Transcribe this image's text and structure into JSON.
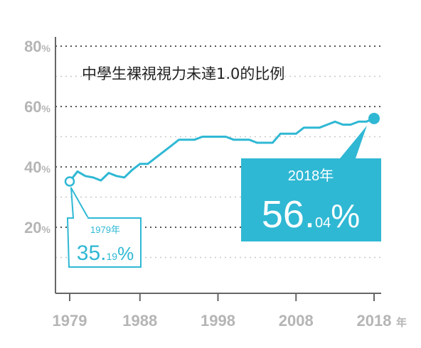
{
  "chart_data": {
    "type": "line",
    "title": "中學生裸視視力未達1.0的比例",
    "xlabel": "",
    "ylabel": "",
    "x_ticks": [
      "1979",
      "1988",
      "1998",
      "2008",
      "2018"
    ],
    "x_unit": "年",
    "y_ticks": [
      {
        "value": 20,
        "label": "20",
        "unit": "%"
      },
      {
        "value": 40,
        "label": "40",
        "unit": "%"
      },
      {
        "value": 60,
        "label": "60",
        "unit": "%"
      },
      {
        "value": 80,
        "label": "80",
        "unit": "%"
      }
    ],
    "xlim": [
      1979,
      2018
    ],
    "ylim": [
      0,
      80
    ],
    "grid": true,
    "colors": {
      "line": "#2fb8d4",
      "axis": "#666666",
      "grid": "#555555",
      "tick": "#b5b5b5"
    },
    "series": [
      {
        "x": [
          1979,
          1980,
          1981,
          1982,
          1983,
          1984,
          1985,
          1986,
          1987,
          1988,
          1989,
          1990,
          1991,
          1992,
          1993,
          1994,
          1995,
          1996,
          1997,
          1998,
          1999,
          2000,
          2001,
          2002,
          2003,
          2004,
          2005,
          2006,
          2007,
          2008,
          2009,
          2010,
          2011,
          2012,
          2013,
          2014,
          2015,
          2016,
          2017,
          2018
        ],
        "y": [
          35.19,
          38.5,
          37,
          36.5,
          35.5,
          38,
          37,
          36.5,
          39,
          41,
          41,
          43,
          45,
          47,
          49,
          49,
          49,
          50,
          50,
          50,
          50,
          49,
          49,
          49,
          48,
          48,
          48,
          51,
          51,
          51,
          53,
          53,
          53,
          54,
          55,
          54,
          54,
          55,
          55,
          56.04
        ]
      }
    ],
    "callouts": [
      {
        "year_label": "1979年",
        "value_main": "35.",
        "value_decimal": "19",
        "value_unit": "%"
      },
      {
        "year_label": "2018年",
        "value_main": "56.",
        "value_decimal": "04",
        "value_unit": "%"
      }
    ]
  }
}
